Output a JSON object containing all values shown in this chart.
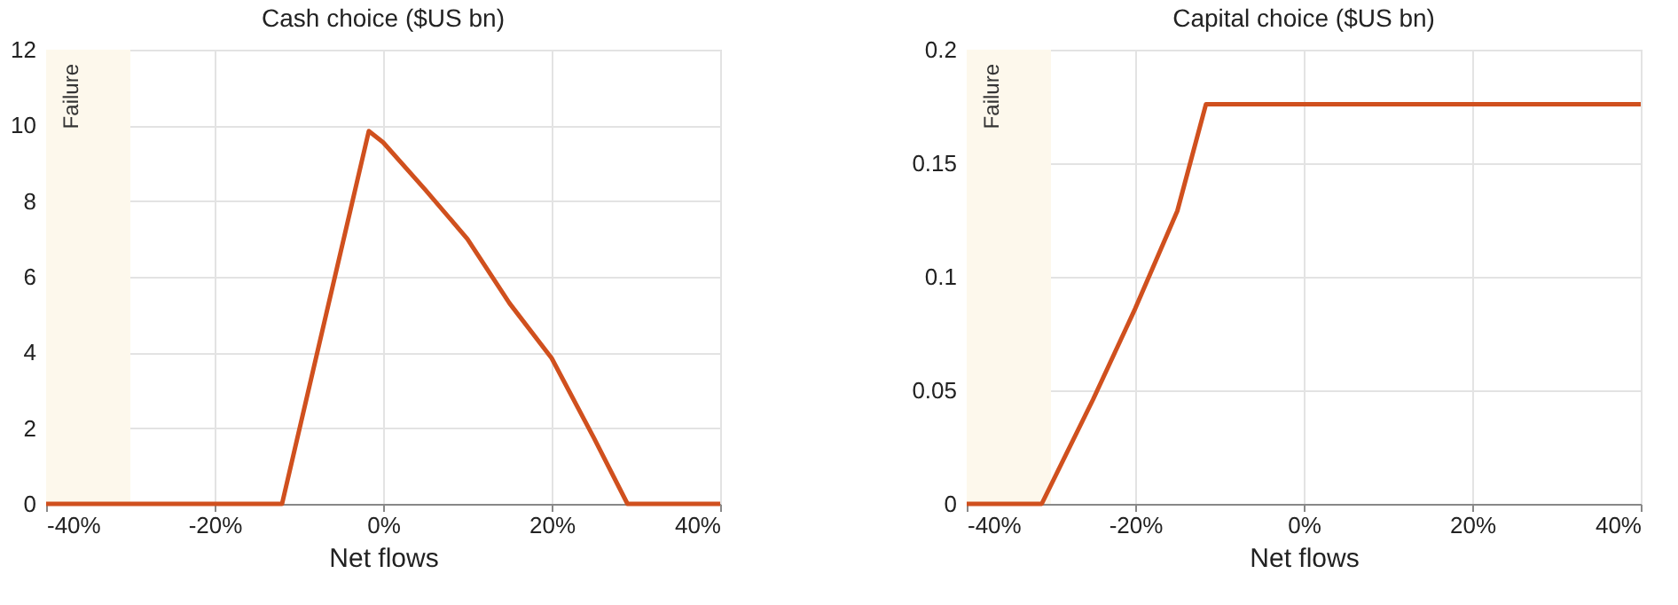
{
  "chart_data": [
    {
      "type": "line",
      "title": "Cash choice ($US bn)",
      "xlabel": "Net flows",
      "x": [
        -40,
        -12,
        -1.7,
        0,
        5,
        10,
        15,
        20,
        25,
        29,
        40
      ],
      "series": [
        {
          "color": "#d0501e",
          "values": [
            0,
            0,
            9.85,
            9.55,
            8.3,
            7.0,
            5.3,
            3.85,
            1.75,
            0,
            0
          ]
        }
      ],
      "xlim": [
        -40,
        40
      ],
      "xticks": [
        {
          "value": -40,
          "label": "-40%"
        },
        {
          "value": -20,
          "label": "-20%"
        },
        {
          "value": 0,
          "label": "0%"
        },
        {
          "value": 20,
          "label": "20%"
        },
        {
          "value": 40,
          "label": "40%"
        }
      ],
      "ylim": [
        0,
        12
      ],
      "yticks": [
        0,
        2,
        4,
        6,
        8,
        10,
        12
      ],
      "grid": true,
      "bands": [
        {
          "axis": "x",
          "from": -40,
          "to": -30,
          "label": "Failure",
          "color": "#fdf8ec"
        }
      ]
    },
    {
      "type": "line",
      "title": "Capital choice ($US bn)",
      "xlabel": "Net flows",
      "x": [
        -40,
        -31.1,
        -25,
        -20,
        -15,
        -11.6,
        40
      ],
      "series": [
        {
          "color": "#d0501e",
          "values": [
            0,
            0,
            0.046,
            0.086,
            0.129,
            0.176,
            0.176
          ]
        }
      ],
      "xlim": [
        -40,
        40
      ],
      "xticks": [
        {
          "value": -40,
          "label": "-40%"
        },
        {
          "value": -20,
          "label": "-20%"
        },
        {
          "value": 0,
          "label": "0%"
        },
        {
          "value": 20,
          "label": "20%"
        },
        {
          "value": 40,
          "label": "40%"
        }
      ],
      "ylim": [
        0,
        0.2
      ],
      "yticks": [
        0,
        0.05,
        0.1,
        0.15,
        0.2
      ],
      "grid": true,
      "bands": [
        {
          "axis": "x",
          "from": -40,
          "to": -30,
          "label": "Failure",
          "color": "#fdf8ec"
        }
      ]
    }
  ]
}
